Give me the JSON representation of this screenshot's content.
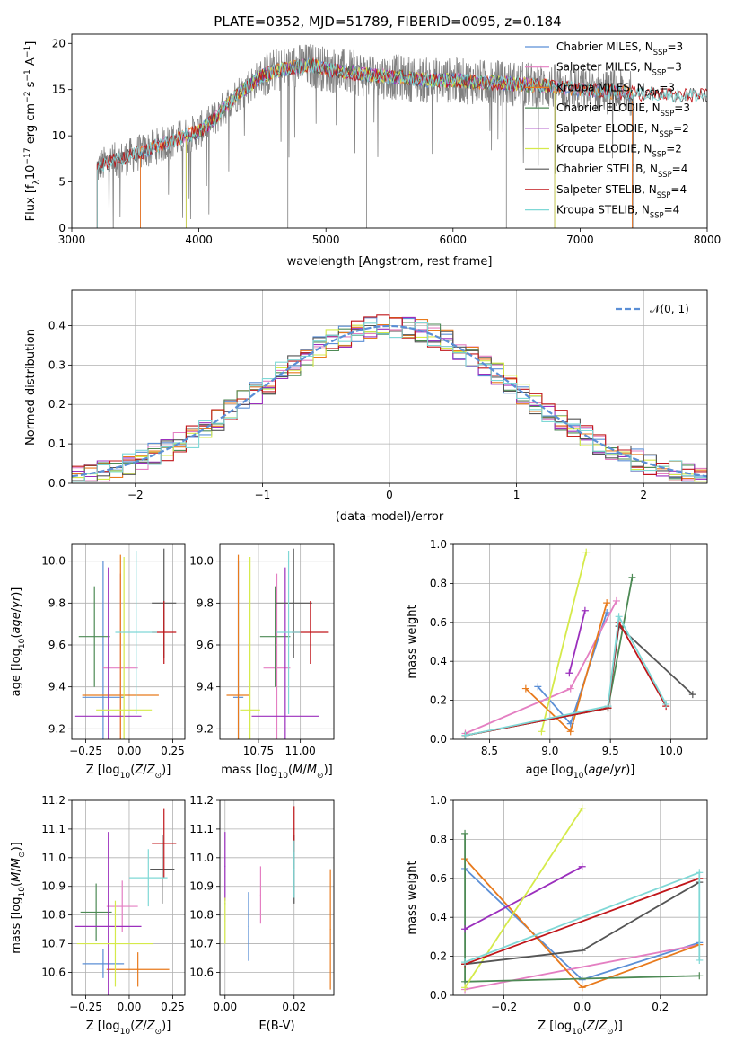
{
  "figure": {
    "title": "PLATE=0352, MJD=51789, FIBERID=0095, z=0.184"
  },
  "colors": {
    "Chabrier MILES": "#5b8fd6",
    "Salpeter MILES": "#e47fc2",
    "Kroupa MILES": "#e87a1c",
    "Chabrier ELODIE": "#4d8a55",
    "Salpeter ELODIE": "#9b2fbd",
    "Kroupa ELODIE": "#d5ea4a",
    "Chabrier STELIB": "#555555",
    "Salpeter STELIB": "#c0161a",
    "Kroupa STELIB": "#7fd8d6",
    "data": "#808080",
    "normal": "#5b8fd6"
  },
  "chart_data": [
    {
      "id": "spectrum",
      "type": "line",
      "xlabel": "wavelength [Angstrom, rest frame]",
      "ylabel": "Flux [f_λ 10^-17 erg cm^-2 s^-1 A^-1]",
      "xlim": [
        3000,
        8000
      ],
      "ylim": [
        0,
        21
      ],
      "xticks": [
        "3000",
        "4000",
        "5000",
        "6000",
        "7000",
        "8000"
      ],
      "yticks": [
        "0",
        "5",
        "10",
        "15",
        "20"
      ],
      "grid": false,
      "legend_position": "top-right",
      "legend": [
        {
          "label": "Chabrier MILES, N",
          "sub": "SSP",
          "suffix": "=3",
          "series": "Chabrier MILES"
        },
        {
          "label": "Salpeter MILES, N",
          "sub": "SSP",
          "suffix": "=3",
          "series": "Salpeter MILES"
        },
        {
          "label": "Kroupa MILES, N",
          "sub": "SSP",
          "suffix": "=3",
          "series": "Kroupa MILES"
        },
        {
          "label": "Chabrier ELODIE, N",
          "sub": "SSP",
          "suffix": "=3",
          "series": "Chabrier ELODIE"
        },
        {
          "label": "Salpeter ELODIE, N",
          "sub": "SSP",
          "suffix": "=2",
          "series": "Salpeter ELODIE"
        },
        {
          "label": "Kroupa ELODIE, N",
          "sub": "SSP",
          "suffix": "=2",
          "series": "Kroupa ELODIE"
        },
        {
          "label": "Chabrier STELIB, N",
          "sub": "SSP",
          "suffix": "=4",
          "series": "Chabrier STELIB"
        },
        {
          "label": "Salpeter STELIB, N",
          "sub": "SSP",
          "suffix": "=4",
          "series": "Salpeter STELIB"
        },
        {
          "label": "Kroupa STELIB, N",
          "sub": "SSP",
          "suffix": "=4",
          "series": "Kroupa STELIB"
        }
      ],
      "continuum": {
        "x": [
          3200,
          3300,
          3400,
          3500,
          3600,
          3700,
          3800,
          3900,
          4000,
          4100,
          4200,
          4300,
          4400,
          4500,
          4600,
          4700,
          4800,
          4900,
          5000,
          5200,
          5400,
          5600,
          5800,
          6000,
          6200,
          6400,
          6600,
          6800,
          7000,
          7200,
          7400,
          7600,
          7800,
          8000
        ],
        "y": [
          6.5,
          7.2,
          7.5,
          8.0,
          8.5,
          9.0,
          9.5,
          10.0,
          10.5,
          11.5,
          13.0,
          14.5,
          15.5,
          16.5,
          17.0,
          17.3,
          17.5,
          17.6,
          17.2,
          16.8,
          16.5,
          16.3,
          16.0,
          16.0,
          15.8,
          15.7,
          15.5,
          15.3,
          15.0,
          14.8,
          14.6,
          14.5,
          14.4,
          14.3
        ]
      },
      "model_ranges": {
        "Chabrier MILES": [
          3540,
          7410
        ],
        "Salpeter MILES": [
          3540,
          7410
        ],
        "Kroupa MILES": [
          3540,
          7410
        ],
        "Chabrier ELODIE": [
          3900,
          6800
        ],
        "Salpeter ELODIE": [
          3900,
          6800
        ],
        "Kroupa ELODIE": [
          3900,
          6800
        ],
        "Chabrier STELIB": [
          3200,
          8000
        ],
        "Salpeter STELIB": [
          3200,
          8000
        ],
        "Kroupa STELIB": [
          3200,
          8000
        ]
      },
      "data_range": [
        3200,
        7420
      ]
    },
    {
      "id": "residuals",
      "type": "step",
      "xlabel": "(data-model)/error",
      "ylabel": "Normed distribution",
      "xlim": [
        -2.5,
        2.5
      ],
      "ylim": [
        0,
        0.49
      ],
      "xticks": [
        "-2",
        "-1",
        "0",
        "1",
        "2"
      ],
      "yticks": [
        "0.0",
        "0.1",
        "0.2",
        "0.3",
        "0.4"
      ],
      "grid": true,
      "legend_position": "top-right",
      "legend": [
        {
          "label": "𝒩(0, 1)",
          "series": "normal"
        }
      ],
      "bin_width": 0.1
    },
    {
      "id": "age_vs_Z",
      "type": "errorbar",
      "xlabel": "Z [log10(Z/Z⊙)]",
      "ylabel": "age [log10(age/yr)]",
      "xlim": [
        -0.33,
        0.32
      ],
      "ylim": [
        9.15,
        10.08
      ],
      "xticks": [
        "-0.25",
        "0.00",
        "0.25"
      ],
      "yticks": [
        "9.2",
        "9.4",
        "9.6",
        "9.8",
        "10.0"
      ],
      "grid": true,
      "points": [
        {
          "series": "Chabrier MILES",
          "x": -0.15,
          "xerr": 0.12,
          "y": 9.35,
          "yerr": 0.65
        },
        {
          "series": "Salpeter MILES",
          "x": -0.05,
          "xerr": 0.1,
          "y": 9.49,
          "yerr": 0.45
        },
        {
          "series": "Kroupa MILES",
          "x": -0.05,
          "xerr": 0.22,
          "y": 9.36,
          "yerr": 0.67
        },
        {
          "series": "Chabrier ELODIE",
          "x": -0.2,
          "xerr": 0.09,
          "y": 9.64,
          "yerr": 0.24
        },
        {
          "series": "Salpeter ELODIE",
          "x": -0.12,
          "xerr": 0.19,
          "y": 9.26,
          "yerr": 0.71
        },
        {
          "series": "Kroupa ELODIE",
          "x": -0.03,
          "xerr": 0.16,
          "y": 9.29,
          "yerr": 0.73
        },
        {
          "series": "Chabrier STELIB",
          "x": 0.2,
          "xerr": 0.07,
          "y": 9.8,
          "yerr": 0.26
        },
        {
          "series": "Salpeter STELIB",
          "x": 0.2,
          "xerr": 0.07,
          "y": 9.66,
          "yerr": 0.15
        },
        {
          "series": "Kroupa STELIB",
          "x": 0.04,
          "xerr": 0.12,
          "y": 9.66,
          "yerr": 0.39
        }
      ]
    },
    {
      "id": "age_vs_mass",
      "type": "errorbar",
      "xlabel": "mass [log10(M/M⊙)]",
      "ylabel": "",
      "xlim": [
        10.52,
        11.2
      ],
      "ylim": [
        9.15,
        10.08
      ],
      "xticks": [
        "10.75",
        "11.00"
      ],
      "yticks": [
        "9.2",
        "9.4",
        "9.6",
        "9.8",
        "10.0"
      ],
      "grid": true,
      "points": [
        {
          "series": "Chabrier MILES",
          "x": 10.63,
          "xerr": 0.03,
          "y": 9.35,
          "yerr": 0.65
        },
        {
          "series": "Salpeter MILES",
          "x": 10.86,
          "xerr": 0.08,
          "y": 9.49,
          "yerr": 0.45
        },
        {
          "series": "Kroupa MILES",
          "x": 10.63,
          "xerr": 0.07,
          "y": 9.36,
          "yerr": 0.67
        },
        {
          "series": "Chabrier ELODIE",
          "x": 10.85,
          "xerr": 0.09,
          "y": 9.64,
          "yerr": 0.24
        },
        {
          "series": "Salpeter ELODIE",
          "x": 10.91,
          "xerr": 0.2,
          "y": 9.26,
          "yerr": 0.71
        },
        {
          "series": "Kroupa ELODIE",
          "x": 10.7,
          "xerr": 0.06,
          "y": 9.29,
          "yerr": 0.73
        },
        {
          "series": "Chabrier STELIB",
          "x": 10.96,
          "xerr": 0.11,
          "y": 9.8,
          "yerr": 0.26
        },
        {
          "series": "Salpeter STELIB",
          "x": 11.06,
          "xerr": 0.11,
          "y": 9.66,
          "yerr": 0.15
        },
        {
          "series": "Kroupa STELIB",
          "x": 10.93,
          "xerr": 0.07,
          "y": 9.66,
          "yerr": 0.39
        }
      ]
    },
    {
      "id": "weight_vs_age",
      "type": "line",
      "xlabel": "age [log10(age/yr)]",
      "ylabel": "mass weight",
      "xlim": [
        8.2,
        10.3
      ],
      "ylim": [
        0,
        1.0
      ],
      "xticks": [
        "8.5",
        "9.0",
        "9.5",
        "10.0"
      ],
      "yticks": [
        "0.0",
        "0.2",
        "0.4",
        "0.6",
        "0.8",
        "1.0"
      ],
      "grid": true,
      "series": [
        {
          "series": "Chabrier MILES",
          "x": [
            8.9,
            9.17,
            9.47
          ],
          "y": [
            0.27,
            0.08,
            0.65
          ]
        },
        {
          "series": "Salpeter MILES",
          "x": [
            8.3,
            9.17,
            9.55
          ],
          "y": [
            0.03,
            0.26,
            0.71
          ]
        },
        {
          "series": "Kroupa MILES",
          "x": [
            8.8,
            9.17,
            9.47
          ],
          "y": [
            0.26,
            0.04,
            0.7
          ]
        },
        {
          "series": "Chabrier ELODIE",
          "x": [
            8.3,
            9.48,
            9.68
          ],
          "y": [
            0.02,
            0.16,
            0.83
          ]
        },
        {
          "series": "Salpeter ELODIE",
          "x": [
            9.16,
            9.29
          ],
          "y": [
            0.34,
            0.66
          ]
        },
        {
          "series": "Kroupa ELODIE",
          "x": [
            8.93,
            9.3
          ],
          "y": [
            0.04,
            0.96
          ]
        },
        {
          "series": "Chabrier STELIB",
          "x": [
            8.3,
            9.48,
            9.57,
            10.18
          ],
          "y": [
            0.02,
            0.16,
            0.58,
            0.23
          ]
        },
        {
          "series": "Salpeter STELIB",
          "x": [
            8.3,
            9.48,
            9.57,
            9.96
          ],
          "y": [
            0.02,
            0.16,
            0.6,
            0.17
          ]
        },
        {
          "series": "Kroupa STELIB",
          "x": [
            8.3,
            9.48,
            9.57,
            9.96
          ],
          "y": [
            0.02,
            0.17,
            0.63,
            0.18
          ]
        }
      ]
    },
    {
      "id": "mass_vs_Z",
      "type": "errorbar",
      "xlabel": "Z [log10(Z/Z⊙)]",
      "ylabel": "mass [log10(M/M⊙)]",
      "xlim": [
        -0.33,
        0.32
      ],
      "ylim": [
        10.52,
        11.2
      ],
      "xticks": [
        "-0.25",
        "0.00",
        "0.25"
      ],
      "yticks": [
        "10.6",
        "10.7",
        "10.8",
        "10.9",
        "11.0",
        "11.1",
        "11.2"
      ],
      "grid": true,
      "points": [
        {
          "series": "Chabrier MILES",
          "x": -0.15,
          "xerr": 0.12,
          "y": 10.63,
          "yerr": 0.05
        },
        {
          "series": "Salpeter MILES",
          "x": -0.04,
          "xerr": 0.09,
          "y": 10.83,
          "yerr": 0.09
        },
        {
          "series": "Kroupa MILES",
          "x": 0.05,
          "xerr": 0.18,
          "y": 10.61,
          "yerr": 0.06
        },
        {
          "series": "Chabrier ELODIE",
          "x": -0.19,
          "xerr": 0.09,
          "y": 10.81,
          "yerr": 0.1
        },
        {
          "series": "Salpeter ELODIE",
          "x": -0.12,
          "xerr": 0.19,
          "y": 10.76,
          "yerr": 0.33
        },
        {
          "series": "Kroupa ELODIE",
          "x": -0.08,
          "xerr": 0.22,
          "y": 10.7,
          "yerr": 0.15
        },
        {
          "series": "Chabrier STELIB",
          "x": 0.19,
          "xerr": 0.07,
          "y": 10.96,
          "yerr": 0.12
        },
        {
          "series": "Salpeter STELIB",
          "x": 0.2,
          "xerr": 0.07,
          "y": 11.05,
          "yerr": 0.12
        },
        {
          "series": "Kroupa STELIB",
          "x": 0.11,
          "xerr": 0.11,
          "y": 10.93,
          "yerr": 0.1
        }
      ]
    },
    {
      "id": "mass_vs_ebv",
      "type": "errorbar",
      "xlabel": "E(B-V)",
      "ylabel": "",
      "xlim": [
        -0.0015,
        0.0315
      ],
      "ylim": [
        10.52,
        11.2
      ],
      "xticks": [
        "0.00",
        "0.02"
      ],
      "yticks": [
        "10.6",
        "10.7",
        "10.8",
        "10.9",
        "11.0",
        "11.1",
        "11.2"
      ],
      "grid": true,
      "points": [
        {
          "series": "Chabrier MILES",
          "x": 0.0068,
          "xerr": 0,
          "y": 10.76,
          "yerr": 0.12
        },
        {
          "series": "Salpeter MILES",
          "x": 0.0103,
          "xerr": 0,
          "y": 10.87,
          "yerr": 0.1
        },
        {
          "series": "Kroupa MILES",
          "x": 0.0305,
          "xerr": 0,
          "y": 10.75,
          "yerr": 0.21
        },
        {
          "series": "Chabrier ELODIE",
          "x": 0.0,
          "xerr": 0,
          "y": 10.84,
          "yerr": 0.0
        },
        {
          "series": "Salpeter ELODIE",
          "x": 0.0,
          "xerr": 0,
          "y": 10.97,
          "yerr": 0.12
        },
        {
          "series": "Kroupa ELODIE",
          "x": 0.0,
          "xerr": 0,
          "y": 10.78,
          "yerr": 0.08
        },
        {
          "series": "Chabrier STELIB",
          "x": 0.02,
          "xerr": 0,
          "y": 10.96,
          "yerr": 0.12
        },
        {
          "series": "Salpeter STELIB",
          "x": 0.02,
          "xerr": 0,
          "y": 11.1,
          "yerr": 0.08
        },
        {
          "series": "Kroupa STELIB",
          "x": 0.02,
          "xerr": 0,
          "y": 10.96,
          "yerr": 0.1
        }
      ]
    },
    {
      "id": "weight_vs_Z",
      "type": "line",
      "xlabel": "Z [log10(Z/Z⊙)]",
      "ylabel": "mass weight",
      "xlim": [
        -0.33,
        0.32
      ],
      "ylim": [
        0,
        1.0
      ],
      "xticks": [
        "-0.2",
        "0.0",
        "0.2"
      ],
      "yticks": [
        "0.0",
        "0.2",
        "0.4",
        "0.6",
        "0.8",
        "1.0"
      ],
      "grid": true,
      "series": [
        {
          "series": "Chabrier MILES",
          "x": [
            -0.3,
            0.0,
            0.3
          ],
          "y": [
            0.65,
            0.08,
            0.27
          ]
        },
        {
          "series": "Salpeter MILES",
          "x": [
            -0.3,
            0.3
          ],
          "y": [
            0.03,
            0.26
          ]
        },
        {
          "series": "Kroupa MILES",
          "x": [
            -0.3,
            0.0,
            0.3
          ],
          "y": [
            0.7,
            0.04,
            0.26
          ]
        },
        {
          "series": "Chabrier ELODIE",
          "x": [
            -0.3,
            -0.3,
            0.3
          ],
          "y": [
            0.83,
            0.07,
            0.1
          ]
        },
        {
          "series": "Salpeter ELODIE",
          "x": [
            -0.3,
            0.0
          ],
          "y": [
            0.34,
            0.66
          ]
        },
        {
          "series": "Kroupa ELODIE",
          "x": [
            -0.3,
            0.0
          ],
          "y": [
            0.04,
            0.96
          ]
        },
        {
          "series": "Chabrier STELIB",
          "x": [
            -0.3,
            0.0,
            0.3
          ],
          "y": [
            0.16,
            0.23,
            0.58
          ]
        },
        {
          "series": "Salpeter STELIB",
          "x": [
            -0.3,
            0.3
          ],
          "y": [
            0.16,
            0.6
          ]
        },
        {
          "series": "Kroupa STELIB",
          "x": [
            -0.3,
            0.3,
            0.3
          ],
          "y": [
            0.17,
            0.63,
            0.18
          ]
        }
      ]
    }
  ]
}
